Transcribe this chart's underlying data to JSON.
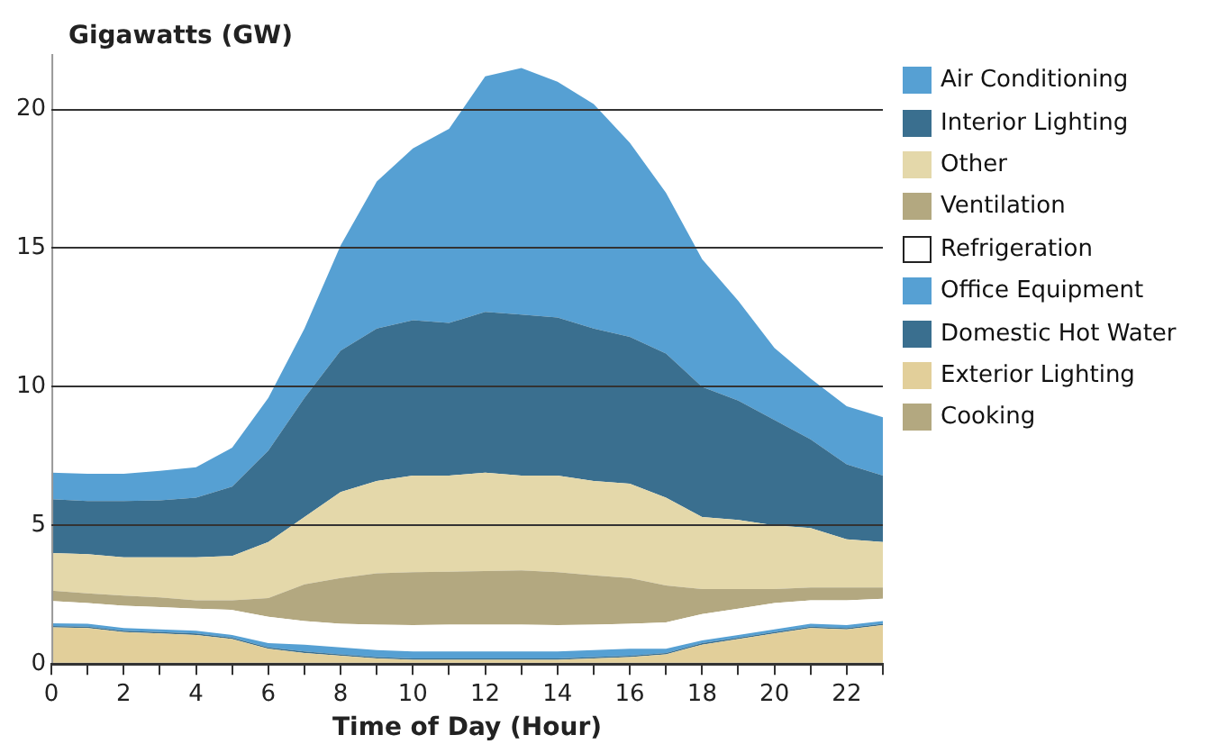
{
  "chart_data": {
    "type": "area",
    "stacked": true,
    "ylabel": "Gigawatts (GW)",
    "xlabel": "Time of Day (Hour)",
    "x": [
      0,
      1,
      2,
      3,
      4,
      5,
      6,
      7,
      8,
      9,
      10,
      11,
      12,
      13,
      14,
      15,
      16,
      17,
      18,
      19,
      20,
      21,
      22,
      23
    ],
    "xlim": [
      0,
      23
    ],
    "xticks": [
      0,
      {
        "value": 1,
        "label": null
      },
      2,
      {
        "value": 3,
        "label": null
      },
      4,
      {
        "value": 5,
        "label": null
      },
      6,
      {
        "value": 7,
        "label": null
      },
      8,
      {
        "value": 9,
        "label": null
      },
      10,
      {
        "value": 11,
        "label": null
      },
      12,
      {
        "value": 13,
        "label": null
      },
      14,
      {
        "value": 15,
        "label": null
      },
      16,
      {
        "value": 17,
        "label": null
      },
      18,
      {
        "value": 19,
        "label": null
      },
      20,
      {
        "value": 21,
        "label": null
      },
      22,
      {
        "value": 23,
        "label": null
      }
    ],
    "ylim": [
      0,
      22
    ],
    "yticks": [
      0,
      5,
      10,
      15,
      20
    ],
    "grid": "y",
    "legend": "right",
    "series": [
      {
        "name": "Cooking",
        "color": "#b3a880",
        "values": [
          0.05,
          0.05,
          0.05,
          0.05,
          0.05,
          0.05,
          0.05,
          0.05,
          0.05,
          0.05,
          0.05,
          0.05,
          0.05,
          0.05,
          0.05,
          0.05,
          0.05,
          0.05,
          0.05,
          0.05,
          0.05,
          0.05,
          0.05,
          0.05
        ]
      },
      {
        "name": "Exterior Lighting",
        "color": "#e2cf9a",
        "values": [
          1.27,
          1.25,
          1.1,
          1.05,
          1.0,
          0.85,
          0.5,
          0.35,
          0.25,
          0.15,
          0.1,
          0.1,
          0.1,
          0.1,
          0.1,
          0.15,
          0.2,
          0.3,
          0.65,
          0.85,
          1.05,
          1.25,
          1.2,
          1.35
        ]
      },
      {
        "name": "Domestic Hot Water",
        "color": "#3a6f8f",
        "values": [
          0.05,
          0.05,
          0.05,
          0.05,
          0.05,
          0.05,
          0.05,
          0.05,
          0.05,
          0.05,
          0.05,
          0.05,
          0.05,
          0.05,
          0.05,
          0.05,
          0.05,
          0.05,
          0.05,
          0.05,
          0.05,
          0.05,
          0.05,
          0.05
        ]
      },
      {
        "name": "Office Equipment",
        "color": "#56a0d3",
        "values": [
          0.1,
          0.1,
          0.1,
          0.1,
          0.1,
          0.1,
          0.15,
          0.25,
          0.25,
          0.25,
          0.25,
          0.25,
          0.25,
          0.25,
          0.25,
          0.25,
          0.25,
          0.15,
          0.1,
          0.1,
          0.1,
          0.1,
          0.1,
          0.1
        ]
      },
      {
        "name": "Refrigeration",
        "color": "#ffffff",
        "values": [
          0.8,
          0.75,
          0.8,
          0.8,
          0.8,
          0.9,
          0.95,
          0.85,
          0.85,
          0.92,
          0.95,
          0.97,
          0.97,
          0.97,
          0.95,
          0.92,
          0.9,
          0.95,
          0.95,
          0.95,
          0.95,
          0.85,
          0.9,
          0.8
        ]
      },
      {
        "name": "Ventilation",
        "color": "#b3a880",
        "values": [
          0.38,
          0.35,
          0.37,
          0.35,
          0.3,
          0.35,
          0.68,
          1.32,
          1.65,
          1.85,
          1.91,
          1.91,
          1.93,
          1.96,
          1.91,
          1.78,
          1.65,
          1.33,
          0.9,
          0.7,
          0.5,
          0.46,
          0.46,
          0.41
        ]
      },
      {
        "name": "Other",
        "color": "#e4d8aa",
        "values": [
          1.35,
          1.41,
          1.38,
          1.45,
          1.55,
          1.6,
          2.02,
          2.43,
          3.1,
          3.33,
          3.49,
          3.47,
          3.55,
          3.42,
          3.49,
          3.4,
          3.4,
          3.17,
          2.6,
          2.5,
          2.3,
          2.14,
          1.74,
          1.64
        ]
      },
      {
        "name": "Interior Lighting",
        "color": "#3a6f8f",
        "values": [
          1.94,
          1.92,
          2.03,
          2.05,
          2.15,
          2.5,
          3.3,
          4.3,
          5.1,
          5.5,
          5.6,
          5.5,
          5.8,
          5.8,
          5.7,
          5.5,
          5.3,
          5.2,
          4.7,
          4.3,
          3.8,
          3.2,
          2.7,
          2.4
        ]
      },
      {
        "name": "Air Conditioning",
        "color": "#56a0d3",
        "values": [
          0.96,
          0.98,
          0.98,
          1.07,
          1.1,
          1.4,
          1.9,
          2.5,
          3.8,
          5.3,
          6.2,
          7.0,
          8.5,
          8.9,
          8.5,
          8.1,
          7.0,
          5.8,
          4.6,
          3.6,
          2.6,
          2.2,
          2.1,
          2.1
        ]
      }
    ]
  }
}
